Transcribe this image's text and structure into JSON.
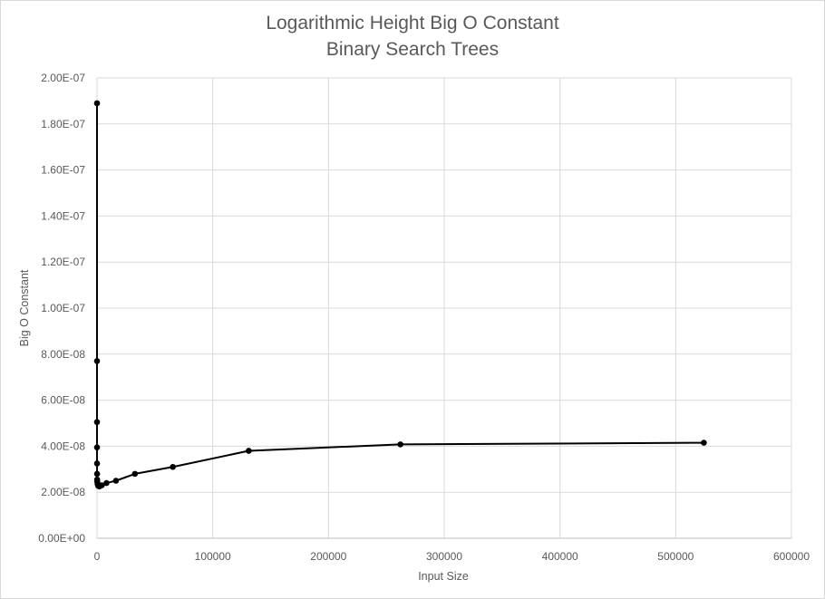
{
  "chart_data": {
    "type": "scatter",
    "title": "Logarithmic Height Big O Constant",
    "subtitle": "Binary Search Trees",
    "xlabel": "Input Size",
    "ylabel": "Big O Constant",
    "xlim": [
      0,
      600000
    ],
    "ylim": [
      0,
      2e-07
    ],
    "x_ticks": [
      "0",
      "100000",
      "200000",
      "300000",
      "400000",
      "500000",
      "600000"
    ],
    "y_ticks": [
      "0.00E+00",
      "2.00E-08",
      "4.00E-08",
      "6.00E-08",
      "8.00E-08",
      "1.00E-07",
      "1.20E-07",
      "1.40E-07",
      "1.60E-07",
      "1.80E-07",
      "2.00E-07"
    ],
    "grid": true,
    "markers": true,
    "lines": "straight",
    "series": [
      {
        "color": "#000000",
        "points": [
          [
            2,
            1.89e-07
          ],
          [
            4,
            7.7e-08
          ],
          [
            8,
            5.05e-08
          ],
          [
            16,
            3.95e-08
          ],
          [
            32,
            3.25e-08
          ],
          [
            64,
            2.8e-08
          ],
          [
            128,
            2.55e-08
          ],
          [
            256,
            2.45e-08
          ],
          [
            512,
            2.35e-08
          ],
          [
            1024,
            2.28e-08
          ],
          [
            2048,
            2.25e-08
          ],
          [
            4096,
            2.3e-08
          ],
          [
            8192,
            2.4e-08
          ],
          [
            16384,
            2.5e-08
          ],
          [
            32768,
            2.8e-08
          ],
          [
            65536,
            3.1e-08
          ],
          [
            131072,
            3.8e-08
          ],
          [
            262144,
            4.08e-08
          ],
          [
            524288,
            4.15e-08
          ]
        ]
      }
    ]
  }
}
